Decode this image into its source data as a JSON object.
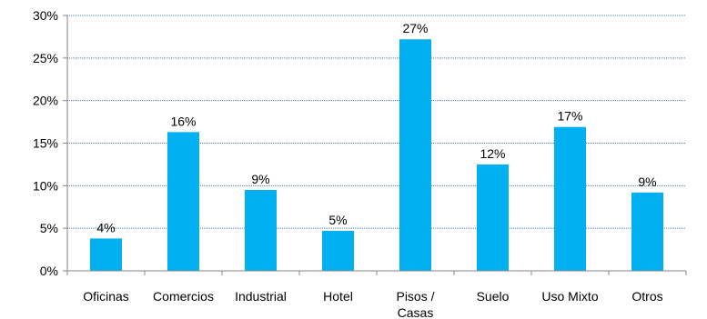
{
  "chart_data": {
    "type": "bar",
    "categories": [
      "Oficinas",
      "Comercios",
      "Industrial",
      "Hotel",
      "Pisos / Casas",
      "Suelo",
      "Uso Mixto",
      "Otros"
    ],
    "category_label_lines": [
      [
        "Oficinas"
      ],
      [
        "Comercios"
      ],
      [
        "Industrial"
      ],
      [
        "Hotel"
      ],
      [
        "Pisos /",
        "Casas"
      ],
      [
        "Suelo"
      ],
      [
        "Uso Mixto"
      ],
      [
        "Otros"
      ]
    ],
    "values": [
      3.8,
      16.3,
      9.5,
      4.7,
      27.2,
      12.5,
      16.9,
      9.2
    ],
    "data_labels": [
      "4%",
      "16%",
      "9%",
      "5%",
      "27%",
      "12%",
      "17%",
      "9%"
    ],
    "yticks": [
      0,
      5,
      10,
      15,
      20,
      25,
      30
    ],
    "ytick_labels": [
      "0%",
      "5%",
      "10%",
      "15%",
      "20%",
      "25%",
      "30%"
    ],
    "ylim": [
      0,
      30
    ],
    "title": "",
    "xlabel": "",
    "ylabel": "",
    "grid": true,
    "legend": "none",
    "colors": {
      "bar": "#00B0F0",
      "grid": "#4A7EBB",
      "axis": "#868686"
    }
  }
}
